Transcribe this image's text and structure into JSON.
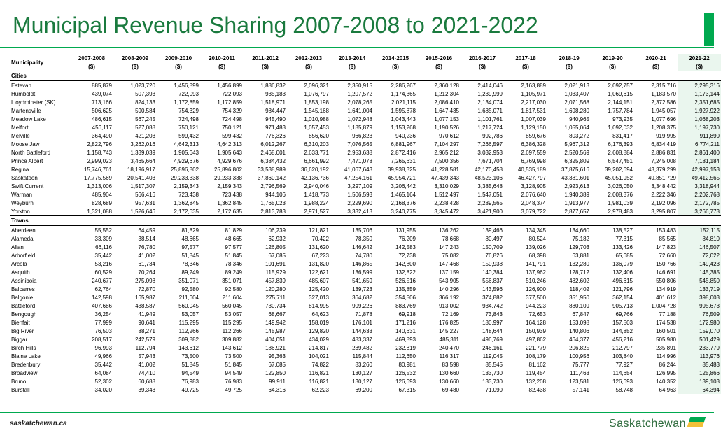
{
  "title": "Municipal Revenue Sharing 2007-2008 to 2021-2022",
  "footer_url": "saskatchewan.ca",
  "logo_text": "Saskatchewan",
  "colors": {
    "accent_green": "#00a94f",
    "title_green": "#1a7a3e",
    "highlight_bg": "#eaf6ee",
    "logo_yellow": "#f2c038",
    "logo_green": "#00a94f",
    "logo_text": "#2e6b3d"
  },
  "municipality_header": "Municipality",
  "year_labels": [
    "2007-2008",
    "2008-2009",
    "2009-2010",
    "2010-2011",
    "2011-2012",
    "2012-2013",
    "2013-2014",
    "2014-2015",
    "2015-2016",
    "2016-2017",
    "2017-18",
    "2018-19",
    "2019-20",
    "2020-21",
    "2021-22"
  ],
  "unit_label": "($)",
  "sections": [
    {
      "name": "Cities",
      "rows": [
        {
          "label": "Estevan",
          "vals": [
            "885,879",
            "1,023,720",
            "1,456,899",
            "1,456,899",
            "1,886,832",
            "2,096,321",
            "2,350,915",
            "2,286,267",
            "2,360,128",
            "2,414,046",
            "2,163,889",
            "2,021,913",
            "2,092,757",
            "2,315,716",
            "2,295,316"
          ]
        },
        {
          "label": "Humboldt",
          "vals": [
            "439,074",
            "507,393",
            "722,093",
            "722,093",
            "935,183",
            "1,076,797",
            "1,207,572",
            "1,174,365",
            "1,212,304",
            "1,239,999",
            "1,105,971",
            "1,033,407",
            "1,069,615",
            "1,183,570",
            "1,173,144"
          ]
        },
        {
          "label": "Lloydminster (SK)",
          "vals": [
            "713,166",
            "824,133",
            "1,172,859",
            "1,172,859",
            "1,518,971",
            "1,853,198",
            "2,078,265",
            "2,021,115",
            "2,086,410",
            "2,134,074",
            "2,217,030",
            "2,071,568",
            "2,144,151",
            "2,372,586",
            "2,351,685"
          ]
        },
        {
          "label": "Martensville",
          "vals": [
            "506,625",
            "590,584",
            "754,329",
            "754,329",
            "984,447",
            "1,545,168",
            "1,641,004",
            "1,595,878",
            "1,647,435",
            "1,685,071",
            "1,817,531",
            "1,698,280",
            "1,757,784",
            "1,945,057",
            "1,927,922"
          ]
        },
        {
          "label": "Meadow Lake",
          "vals": [
            "486,615",
            "567,245",
            "724,498",
            "724,498",
            "945,490",
            "1,010,988",
            "1,072,948",
            "1,043,443",
            "1,077,153",
            "1,101,761",
            "1,007,039",
            "940,965",
            "973,935",
            "1,077,696",
            "1,068,203"
          ]
        },
        {
          "label": "Melfort",
          "vals": [
            "456,117",
            "527,088",
            "750,121",
            "750,121",
            "971,483",
            "1,057,453",
            "1,185,879",
            "1,153,268",
            "1,190,526",
            "1,217,724",
            "1,129,150",
            "1,055,064",
            "1,092,032",
            "1,208,375",
            "1,197,730"
          ]
        },
        {
          "label": "Melville",
          "vals": [
            "364,490",
            "421,203",
            "599,432",
            "599,432",
            "776,326",
            "856,620",
            "966,823",
            "940,236",
            "970,612",
            "992,786",
            "859,676",
            "803,272",
            "831,417",
            "919,995",
            "911,890"
          ]
        },
        {
          "label": "Moose Jaw",
          "vals": [
            "2,822,796",
            "3,262,016",
            "4,642,313",
            "4,642,313",
            "6,012,267",
            "6,310,203",
            "7,076,565",
            "6,881,967",
            "7,104,297",
            "7,266,597",
            "6,386,328",
            "5,967,312",
            "6,176,393",
            "6,834,419",
            "6,774,211"
          ]
        },
        {
          "label": "North Battleford",
          "vals": [
            "1,158,743",
            "1,339,039",
            "1,905,643",
            "1,905,643",
            "2,468,001",
            "2,633,771",
            "2,953,638",
            "2,872,416",
            "2,965,212",
            "3,032,953",
            "2,697,559",
            "2,520,569",
            "2,608,884",
            "2,886,831",
            "2,861,400"
          ]
        },
        {
          "label": "Prince Albert",
          "vals": [
            "2,999,023",
            "3,465,664",
            "4,929,676",
            "4,929,676",
            "6,384,432",
            "6,661,992",
            "7,471,078",
            "7,265,631",
            "7,500,356",
            "7,671,704",
            "6,769,998",
            "6,325,809",
            "6,547,451",
            "7,245,008",
            "7,181,184"
          ]
        },
        {
          "label": "Regina",
          "vals": [
            "15,746,761",
            "18,196,917",
            "25,896,802",
            "25,896,802",
            "33,538,989",
            "36,620,192",
            "41,067,643",
            "39,938,325",
            "41,228,581",
            "42,170,458",
            "40,535,189",
            "37,875,616",
            "39,202,694",
            "43,379,299",
            "42,997,153"
          ]
        },
        {
          "label": "Saskatoon",
          "vals": [
            "17,775,569",
            "20,541,403",
            "29,233,338",
            "29,233,338",
            "37,860,142",
            "42,136,736",
            "47,254,161",
            "45,954,721",
            "47,439,343",
            "48,523,106",
            "46,427,797",
            "43,381,601",
            "45,051,952",
            "49,851,729",
            "49,412,565"
          ]
        },
        {
          "label": "Swift Current",
          "vals": [
            "1,313,006",
            "1,517,307",
            "2,159,343",
            "2,159,343",
            "2,796,569",
            "2,940,046",
            "3,297,109",
            "3,206,442",
            "3,310,029",
            "3,385,648",
            "3,128,905",
            "2,923,613",
            "3,026,050",
            "3,348,442",
            "3,318,944"
          ]
        },
        {
          "label": "Warman",
          "vals": [
            "485,904",
            "566,416",
            "723,438",
            "723,438",
            "944,106",
            "1,418,773",
            "1,506,593",
            "1,465,164",
            "1,512,497",
            "1,547,051",
            "2,076,640",
            "1,940,389",
            "2,008,376",
            "2,222,346",
            "2,202,768"
          ]
        },
        {
          "label": "Weyburn",
          "vals": [
            "828,689",
            "957,631",
            "1,362,845",
            "1,362,845",
            "1,765,023",
            "1,988,224",
            "2,229,690",
            "2,168,376",
            "2,238,428",
            "2,289,565",
            "2,048,374",
            "1,913,977",
            "1,981,039",
            "2,192,096",
            "2,172,785"
          ]
        },
        {
          "label": "Yorkton",
          "vals": [
            "1,321,088",
            "1,526,646",
            "2,172,635",
            "2,172,635",
            "2,813,783",
            "2,971,527",
            "3,332,413",
            "3,240,775",
            "3,345,472",
            "3,421,900",
            "3,079,722",
            "2,877,657",
            "2,978,483",
            "3,295,807",
            "3,266,773"
          ]
        }
      ]
    },
    {
      "name": "Towns",
      "rows": [
        {
          "label": "Aberdeen",
          "vals": [
            "55,552",
            "64,459",
            "81,829",
            "81,829",
            "106,239",
            "121,821",
            "135,706",
            "131,955",
            "136,262",
            "139,466",
            "134,345",
            "134,660",
            "138,527",
            "153,483",
            "152,115"
          ]
        },
        {
          "label": "Alameda",
          "vals": [
            "33,309",
            "38,514",
            "48,665",
            "48,665",
            "62,932",
            "70,422",
            "78,350",
            "76,209",
            "78,668",
            "80,497",
            "80,524",
            "75,182",
            "77,315",
            "85,565",
            "84,810"
          ]
        },
        {
          "label": "Allan",
          "vals": [
            "66,116",
            "76,780",
            "97,577",
            "97,577",
            "126,805",
            "131,620",
            "146,642",
            "142,583",
            "147,243",
            "150,709",
            "139,026",
            "129,703",
            "133,426",
            "147,823",
            "146,507"
          ]
        },
        {
          "label": "Arborfield",
          "vals": [
            "35,442",
            "41,002",
            "51,845",
            "51,845",
            "67,085",
            "67,223",
            "74,780",
            "72,738",
            "75,082",
            "76,826",
            "68,398",
            "63,881",
            "65,685",
            "72,660",
            "72,022"
          ]
        },
        {
          "label": "Arcola",
          "vals": [
            "53,216",
            "61,734",
            "78,346",
            "78,346",
            "101,691",
            "131,820",
            "146,865",
            "142,800",
            "147,468",
            "150,938",
            "141,791",
            "132,280",
            "136,079",
            "150,766",
            "149,423"
          ]
        },
        {
          "label": "Asquith",
          "vals": [
            "60,529",
            "70,264",
            "89,249",
            "89,249",
            "115,929",
            "122,621",
            "136,599",
            "132,822",
            "137,159",
            "140,384",
            "137,962",
            "128,712",
            "132,406",
            "146,691",
            "145,385"
          ]
        },
        {
          "label": "Assiniboia",
          "vals": [
            "240,677",
            "275,098",
            "351,071",
            "351,071",
            "457,839",
            "485,607",
            "541,659",
            "526,516",
            "543,905",
            "556,837",
            "510,246",
            "482,602",
            "496,615",
            "550,806",
            "545,850"
          ]
        },
        {
          "label": "Balcarres",
          "vals": [
            "62,764",
            "72,870",
            "92,580",
            "92,580",
            "120,280",
            "125,420",
            "139,723",
            "135,859",
            "140,296",
            "143,596",
            "126,900",
            "118,402",
            "121,796",
            "134,919",
            "133,719"
          ]
        },
        {
          "label": "Balgonie",
          "vals": [
            "142,598",
            "165,987",
            "211,604",
            "211,604",
            "275,711",
            "327,013",
            "364,682",
            "354,506",
            "366,192",
            "374,882",
            "377,500",
            "351,950",
            "362,154",
            "401,612",
            "398,003"
          ]
        },
        {
          "label": "Battleford",
          "vals": [
            "407,686",
            "438,587",
            "560,045",
            "560,045",
            "730,734",
            "814,995",
            "909,226",
            "883,769",
            "913,002",
            "934,742",
            "944,223",
            "880,109",
            "905,713",
            "1,004,728",
            "995,673"
          ]
        },
        {
          "label": "Bengough",
          "vals": [
            "36,254",
            "41,949",
            "53,057",
            "53,057",
            "68,667",
            "64,623",
            "71,878",
            "69,918",
            "72,169",
            "73,843",
            "72,653",
            "67,847",
            "69,766",
            "77,188",
            "76,509"
          ]
        },
        {
          "label": "Bienfait",
          "vals": [
            "77,999",
            "90,641",
            "115,295",
            "115,295",
            "149,942",
            "158,019",
            "176,101",
            "171,216",
            "176,825",
            "180,997",
            "164,128",
            "153,098",
            "157,503",
            "174,538",
            "172,980"
          ]
        },
        {
          "label": "Big River",
          "vals": [
            "76,503",
            "88,271",
            "112,266",
            "112,266",
            "145,987",
            "129,820",
            "144,633",
            "140,631",
            "145,227",
            "148,644",
            "150,939",
            "140,806",
            "144,852",
            "160,501",
            "159,070"
          ]
        },
        {
          "label": "Biggar",
          "vals": [
            "208,517",
            "242,579",
            "309,882",
            "309,882",
            "404,051",
            "434,029",
            "483,337",
            "469,893",
            "485,311",
            "496,769",
            "497,862",
            "464,377",
            "456,216",
            "505,980",
            "501,429"
          ]
        },
        {
          "label": "Birch Hills",
          "vals": [
            "96,993",
            "112,794",
            "143,612",
            "143,612",
            "186,921",
            "214,817",
            "239,482",
            "232,819",
            "240,470",
            "246,161",
            "221,779",
            "206,825",
            "212,797",
            "235,891",
            "233,779"
          ]
        },
        {
          "label": "Blaine Lake",
          "vals": [
            "49,966",
            "57,943",
            "73,500",
            "73,500",
            "95,363",
            "104,021",
            "115,844",
            "112,650",
            "116,317",
            "119,045",
            "108,179",
            "100,956",
            "103,840",
            "114,996",
            "113,976"
          ]
        },
        {
          "label": "Bredenbury",
          "vals": [
            "35,442",
            "41,002",
            "51,845",
            "51,845",
            "67,085",
            "74,822",
            "83,260",
            "80,981",
            "83,598",
            "85,545",
            "81,162",
            "75,777",
            "77,927",
            "86,244",
            "85,483"
          ]
        },
        {
          "label": "Broadview",
          "vals": [
            "64,084",
            "74,410",
            "94,549",
            "94,549",
            "122,850",
            "116,821",
            "130,127",
            "126,532",
            "130,660",
            "133,730",
            "119,454",
            "111,463",
            "114,654",
            "126,995",
            "125,866"
          ]
        },
        {
          "label": "Bruno",
          "vals": [
            "52,302",
            "60,688",
            "76,983",
            "76,983",
            "99,911",
            "116,821",
            "130,127",
            "126,693",
            "130,660",
            "133,730",
            "132,208",
            "123,581",
            "126,693",
            "140,352",
            "139,103"
          ]
        },
        {
          "label": "Burstall",
          "vals": [
            "34,020",
            "39,343",
            "49,725",
            "49,725",
            "64,316",
            "62,223",
            "69,200",
            "67,315",
            "69,480",
            "71,090",
            "82,438",
            "57,141",
            "58,748",
            "64,963",
            "64,394"
          ]
        }
      ]
    }
  ]
}
